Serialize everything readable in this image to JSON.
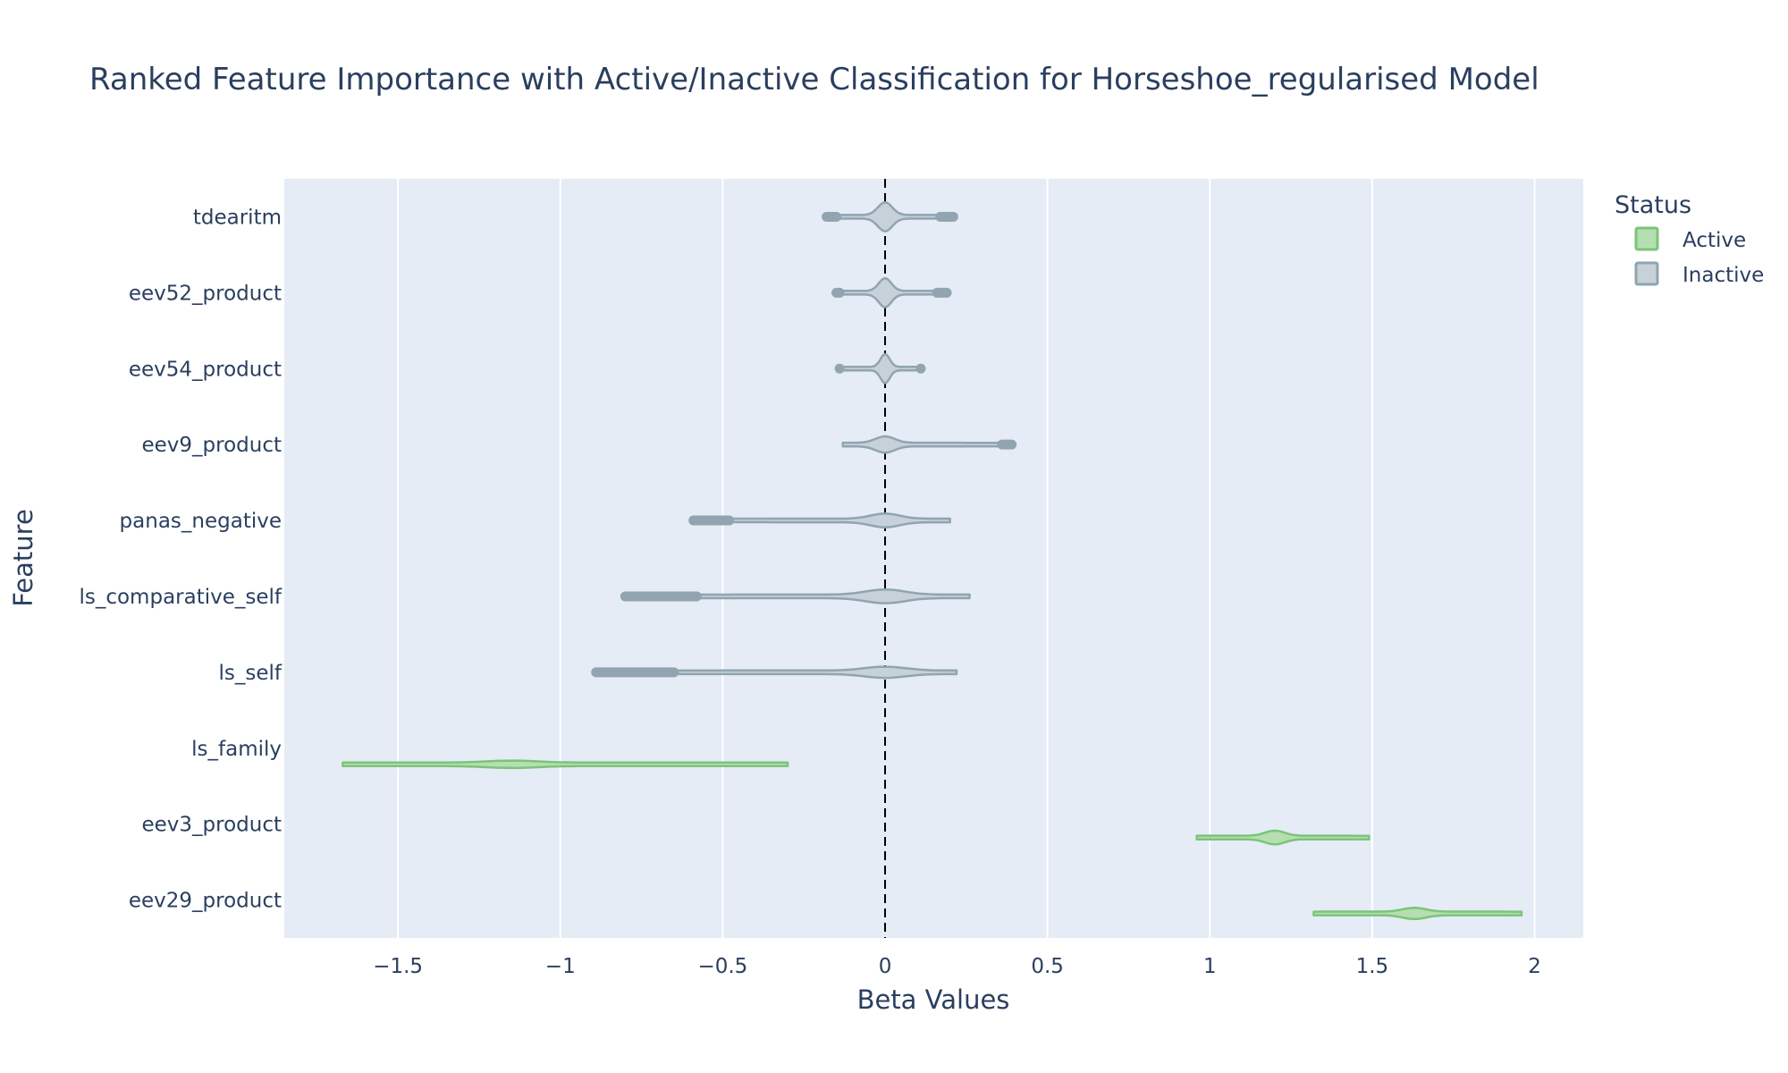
{
  "chart_data": {
    "type": "violin",
    "title": "Ranked Feature Importance with Active/Inactive Classification for Horseshoe_regularised Model",
    "xlabel": "Beta Values",
    "ylabel": "Feature",
    "xlim": [
      -1.85,
      2.15
    ],
    "x_ticks": [
      -1.5,
      -1,
      -0.5,
      0,
      0.5,
      1,
      1.5,
      2
    ],
    "x_tick_labels": [
      "−1.5",
      "−1",
      "−0.5",
      "0",
      "0.5",
      "1",
      "1.5",
      "2"
    ],
    "reference_line_x": 0,
    "grid": true,
    "legend_placement": "top-right",
    "legend_title": "Status",
    "statuses": [
      {
        "name": "Active",
        "fill": "#b5dfb0",
        "stroke": "#7bc47a"
      },
      {
        "name": "Inactive",
        "fill": "#c6d1d9",
        "stroke": "#91a4b0"
      }
    ],
    "features": [
      {
        "name": "tdearitm",
        "status": "Inactive",
        "min": -0.18,
        "max": 0.21,
        "center": 0.0,
        "width": 0.1,
        "outliers_low": [
          -0.18,
          -0.15
        ],
        "outliers_high": [
          0.17,
          0.21
        ]
      },
      {
        "name": "eev52_product",
        "status": "Inactive",
        "min": -0.15,
        "max": 0.19,
        "center": 0.0,
        "width": 0.1,
        "outliers_low": [
          -0.15,
          -0.14
        ],
        "outliers_high": [
          0.16,
          0.19
        ]
      },
      {
        "name": "eev54_product",
        "status": "Inactive",
        "min": -0.14,
        "max": 0.11,
        "center": 0.0,
        "width": 0.1,
        "outliers_low": [
          -0.14
        ],
        "outliers_high": [
          0.11
        ]
      },
      {
        "name": "eev9_product",
        "status": "Inactive",
        "min": -0.13,
        "max": 0.39,
        "center": 0.0,
        "width": 0.05,
        "outliers_low": [],
        "outliers_high": [
          0.36,
          0.39
        ]
      },
      {
        "name": "panas_negative",
        "status": "Inactive",
        "min": -0.59,
        "max": 0.2,
        "center": 0.0,
        "width": 0.04,
        "outliers_low": [
          -0.59,
          -0.48
        ],
        "outliers_high": []
      },
      {
        "name": "ls_comparative_self",
        "status": "Inactive",
        "min": -0.8,
        "max": 0.26,
        "center": 0.0,
        "width": 0.04,
        "outliers_low": [
          -0.8,
          -0.58
        ],
        "outliers_high": []
      },
      {
        "name": "ls_self",
        "status": "Inactive",
        "min": -0.89,
        "max": 0.22,
        "center": 0.0,
        "width": 0.03,
        "outliers_low": [
          -0.89,
          -0.65
        ],
        "outliers_high": []
      },
      {
        "name": "ls_family",
        "status": "Active",
        "min": -1.67,
        "max": -0.3,
        "center": -1.15,
        "width": 0.015,
        "outliers_low": [],
        "outliers_high": []
      },
      {
        "name": "eev3_product",
        "status": "Active",
        "min": 0.96,
        "max": 1.49,
        "center": 1.2,
        "width": 0.04,
        "outliers_low": [],
        "outliers_high": []
      },
      {
        "name": "eev29_product",
        "status": "Active",
        "min": 1.32,
        "max": 1.96,
        "center": 1.63,
        "width": 0.03,
        "outliers_low": [],
        "outliers_high": []
      }
    ]
  }
}
